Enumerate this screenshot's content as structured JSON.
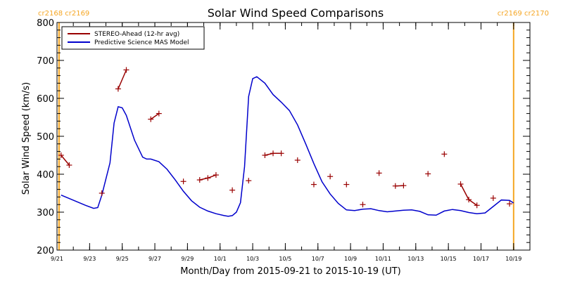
{
  "chart_data": {
    "type": "line",
    "title": "Solar Wind Speed Comparisons",
    "xlabel": "Month/Day from 2015-09-21 to 2015-10-19 (UT)",
    "ylabel": "Solar Wind Speed (km/s)",
    "xlim": [
      "2015-09-21",
      "2015-10-20"
    ],
    "ylim": [
      200,
      800
    ],
    "y_ticks": [
      200,
      300,
      400,
      500,
      600,
      700,
      800
    ],
    "y_tick_labels": [
      "200",
      "300",
      "400",
      "500",
      "600",
      "700",
      "800"
    ],
    "x_ticks": [
      "2015-09-21",
      "2015-09-23",
      "2015-09-25",
      "2015-09-27",
      "2015-09-29",
      "2015-10-01",
      "2015-10-03",
      "2015-10-05",
      "2015-10-07",
      "2015-10-09",
      "2015-10-11",
      "2015-10-13",
      "2015-10-15",
      "2015-10-17",
      "2015-10-19"
    ],
    "x_tick_labels": [
      "9/21",
      "9/23",
      "9/25",
      "9/27",
      "9/29",
      "10/1",
      "10/3",
      "10/5",
      "10/7",
      "10/9",
      "10/11",
      "10/13",
      "10/15",
      "10/17",
      "10/19"
    ],
    "grid": false,
    "legend_position": "top-left",
    "carrington_markers": [
      {
        "date": "2015-09-21T03:00",
        "label_left": "cr2168",
        "label_right": "cr2169",
        "side": "left"
      },
      {
        "date": "2015-10-19T00:00",
        "label_left": "cr2169",
        "label_right": "cr2170",
        "side": "right"
      }
    ],
    "series": [
      {
        "name": "STEREO-Ahead (12-hr avg)",
        "style": "line+plus",
        "color": "#990000",
        "points": [
          [
            "2015-09-21T06:00",
            450
          ],
          [
            "2015-09-21T18:00",
            424
          ],
          null,
          [
            "2015-09-23T18:00",
            350
          ],
          null,
          [
            "2015-09-24T18:00",
            625
          ],
          [
            "2015-09-25T06:00",
            675
          ],
          null,
          [
            "2015-09-26T18:00",
            545
          ],
          [
            "2015-09-27T06:00",
            560
          ],
          null,
          [
            "2015-09-28T18:00",
            381
          ],
          null,
          [
            "2015-09-29T18:00",
            385
          ],
          [
            "2015-09-30T06:00",
            390
          ],
          [
            "2015-09-30T18:00",
            398
          ],
          null,
          [
            "2015-10-01T18:00",
            358
          ],
          null,
          [
            "2015-10-02T18:00",
            383
          ],
          null,
          [
            "2015-10-03T18:00",
            450
          ],
          [
            "2015-10-04T06:00",
            455
          ],
          [
            "2015-10-04T18:00",
            455
          ],
          null,
          [
            "2015-10-05T18:00",
            437
          ],
          null,
          [
            "2015-10-06T18:00",
            373
          ],
          null,
          [
            "2015-10-07T18:00",
            394
          ],
          null,
          [
            "2015-10-08T18:00",
            373
          ],
          null,
          [
            "2015-10-09T18:00",
            320
          ],
          null,
          [
            "2015-10-10T18:00",
            403
          ],
          null,
          [
            "2015-10-11T18:00",
            369
          ],
          [
            "2015-10-12T06:00",
            370
          ],
          null,
          [
            "2015-10-13T18:00",
            401
          ],
          null,
          [
            "2015-10-14T18:00",
            453
          ],
          null,
          [
            "2015-10-15T18:00",
            374
          ],
          [
            "2015-10-16T06:00",
            333
          ],
          [
            "2015-10-16T18:00",
            318
          ],
          null,
          [
            "2015-10-17T18:00",
            337
          ],
          null,
          [
            "2015-10-18T18:00",
            322
          ]
        ]
      },
      {
        "name": "Predictive Science MAS Model",
        "style": "line",
        "color": "#0000cc",
        "points": [
          [
            "2015-09-21T06:00",
            345
          ],
          [
            "2015-09-21T18:00",
            336
          ],
          [
            "2015-09-22T06:00",
            327
          ],
          [
            "2015-09-22T18:00",
            318
          ],
          [
            "2015-09-23T06:00",
            310
          ],
          [
            "2015-09-23T12:00",
            312
          ],
          [
            "2015-09-23T18:00",
            345
          ],
          [
            "2015-09-24T06:00",
            430
          ],
          [
            "2015-09-24T12:00",
            535
          ],
          [
            "2015-09-24T18:00",
            578
          ],
          [
            "2015-09-25T00:00",
            575
          ],
          [
            "2015-09-25T06:00",
            555
          ],
          [
            "2015-09-25T18:00",
            490
          ],
          [
            "2015-09-26T06:00",
            445
          ],
          [
            "2015-09-26T12:00",
            440
          ],
          [
            "2015-09-26T18:00",
            440
          ],
          [
            "2015-09-27T06:00",
            433
          ],
          [
            "2015-09-27T18:00",
            413
          ],
          [
            "2015-09-28T06:00",
            385
          ],
          [
            "2015-09-28T18:00",
            355
          ],
          [
            "2015-09-29T06:00",
            330
          ],
          [
            "2015-09-29T18:00",
            313
          ],
          [
            "2015-09-30T06:00",
            303
          ],
          [
            "2015-09-30T18:00",
            296
          ],
          [
            "2015-10-01T06:00",
            291
          ],
          [
            "2015-10-01T12:00",
            289
          ],
          [
            "2015-10-01T18:00",
            291
          ],
          [
            "2015-10-02T00:00",
            300
          ],
          [
            "2015-10-02T06:00",
            325
          ],
          [
            "2015-10-02T12:00",
            420
          ],
          [
            "2015-10-02T18:00",
            605
          ],
          [
            "2015-10-03T00:00",
            652
          ],
          [
            "2015-10-03T06:00",
            657
          ],
          [
            "2015-10-03T18:00",
            640
          ],
          [
            "2015-10-04T06:00",
            610
          ],
          [
            "2015-10-04T18:00",
            590
          ],
          [
            "2015-10-05T06:00",
            568
          ],
          [
            "2015-10-05T18:00",
            530
          ],
          [
            "2015-10-06T06:00",
            480
          ],
          [
            "2015-10-06T18:00",
            428
          ],
          [
            "2015-10-07T06:00",
            380
          ],
          [
            "2015-10-07T18:00",
            348
          ],
          [
            "2015-10-08T06:00",
            323
          ],
          [
            "2015-10-08T18:00",
            306
          ],
          [
            "2015-10-09T06:00",
            304
          ],
          [
            "2015-10-09T18:00",
            308
          ],
          [
            "2015-10-10T06:00",
            309
          ],
          [
            "2015-10-10T18:00",
            304
          ],
          [
            "2015-10-11T06:00",
            301
          ],
          [
            "2015-10-11T18:00",
            303
          ],
          [
            "2015-10-12T06:00",
            305
          ],
          [
            "2015-10-12T18:00",
            306
          ],
          [
            "2015-10-13T06:00",
            302
          ],
          [
            "2015-10-13T18:00",
            293
          ],
          [
            "2015-10-14T06:00",
            292
          ],
          [
            "2015-10-14T18:00",
            303
          ],
          [
            "2015-10-15T06:00",
            307
          ],
          [
            "2015-10-15T18:00",
            304
          ],
          [
            "2015-10-16T06:00",
            299
          ],
          [
            "2015-10-16T18:00",
            296
          ],
          [
            "2015-10-17T06:00",
            298
          ],
          [
            "2015-10-17T18:00",
            315
          ],
          [
            "2015-10-18T06:00",
            332
          ],
          [
            "2015-10-18T18:00",
            331
          ],
          [
            "2015-10-19T00:00",
            324
          ]
        ]
      }
    ]
  }
}
